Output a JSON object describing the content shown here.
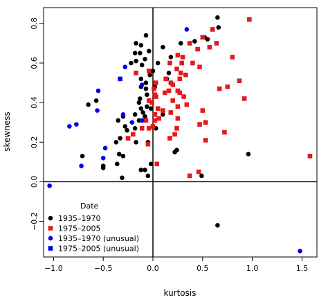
{
  "chart_data": {
    "type": "scatter",
    "title": "",
    "xlabel": "kurtosis",
    "ylabel": "skewness",
    "xlim": [
      -1.1,
      1.65
    ],
    "ylim": [
      -0.38,
      0.88
    ],
    "x_ticks": [
      -1.0,
      -0.5,
      0.0,
      0.5,
      1.0,
      1.5
    ],
    "x_tick_labels": [
      "−1.0",
      "−0.5",
      "0.0",
      "0.5",
      "1.0",
      "1.5"
    ],
    "y_ticks": [
      -0.2,
      0.0,
      0.2,
      0.4,
      0.6,
      0.8
    ],
    "y_tick_labels": [
      "−0.2",
      "0.0",
      "0.2",
      "0.4",
      "0.6",
      "0.8"
    ],
    "reference_lines": {
      "x": 0,
      "y": 0
    },
    "grid": false,
    "legend": {
      "title": "Date",
      "placement": "bottom-left",
      "entries": [
        "1935–1970",
        "1975–2005",
        "1935–1970 (unusual)",
        "1975–2005 (unusual)"
      ]
    },
    "series": [
      {
        "name": "1935–1970",
        "marker": "circle",
        "color": "#000000",
        "points": [
          [
            0.65,
            0.83
          ],
          [
            0.66,
            0.78
          ],
          [
            0.55,
            0.72
          ],
          [
            0.52,
            0.73
          ],
          [
            0.42,
            0.71
          ],
          [
            -0.07,
            0.74
          ],
          [
            -0.17,
            0.7
          ],
          [
            -0.12,
            0.69
          ],
          [
            -0.18,
            0.65
          ],
          [
            -0.13,
            0.65
          ],
          [
            0.1,
            0.68
          ],
          [
            -0.08,
            0.62
          ],
          [
            -0.04,
            0.66
          ],
          [
            0.18,
            0.63
          ],
          [
            0.28,
            0.7
          ],
          [
            -0.22,
            0.6
          ],
          [
            -0.17,
            0.61
          ],
          [
            -0.11,
            0.59
          ],
          [
            0.05,
            0.6
          ],
          [
            0.0,
            0.56
          ],
          [
            -0.03,
            0.54
          ],
          [
            -0.12,
            0.52
          ],
          [
            -0.07,
            0.5
          ],
          [
            0.16,
            0.55
          ],
          [
            0.14,
            0.52
          ],
          [
            -0.12,
            0.48
          ],
          [
            -0.07,
            0.47
          ],
          [
            0.02,
            0.48
          ],
          [
            -0.06,
            0.44
          ],
          [
            -0.04,
            0.41
          ],
          [
            -0.13,
            0.42
          ],
          [
            -0.14,
            0.4
          ],
          [
            -0.12,
            0.37
          ],
          [
            -0.06,
            0.38
          ],
          [
            -0.02,
            0.37
          ],
          [
            -0.1,
            0.35
          ],
          [
            -0.08,
            0.33
          ],
          [
            -0.18,
            0.34
          ],
          [
            -0.14,
            0.31
          ],
          [
            -0.3,
            0.33
          ],
          [
            -0.35,
            0.31
          ],
          [
            -0.28,
            0.28
          ],
          [
            -0.18,
            0.27
          ],
          [
            -0.26,
            0.26
          ],
          [
            -0.33,
            0.22
          ],
          [
            -0.37,
            0.2
          ],
          [
            -0.17,
            0.2
          ],
          [
            -0.05,
            0.2
          ],
          [
            -0.34,
            0.14
          ],
          [
            -0.3,
            0.13
          ],
          [
            -0.36,
            0.09
          ],
          [
            -0.12,
            0.06
          ],
          [
            -0.08,
            0.06
          ],
          [
            -0.02,
            0.09
          ],
          [
            -0.31,
            0.02
          ],
          [
            -0.05,
            0.03
          ],
          [
            -0.65,
            0.39
          ],
          [
            -0.57,
            0.41
          ],
          [
            -0.71,
            0.13
          ],
          [
            -0.5,
            0.08
          ],
          [
            -0.5,
            0.07
          ],
          [
            0.22,
            0.15
          ],
          [
            0.24,
            0.16
          ],
          [
            0.49,
            0.03
          ],
          [
            0.65,
            -0.22
          ],
          [
            0.96,
            0.14
          ],
          [
            0.03,
            0.27
          ],
          [
            0.1,
            0.34
          ]
        ]
      },
      {
        "name": "1975–2005",
        "marker": "square",
        "color": "#e41a1c",
        "points": [
          [
            0.97,
            0.82
          ],
          [
            0.6,
            0.77
          ],
          [
            0.5,
            0.73
          ],
          [
            0.57,
            0.68
          ],
          [
            0.45,
            0.67
          ],
          [
            0.64,
            0.7
          ],
          [
            0.37,
            0.7
          ],
          [
            0.25,
            0.64
          ],
          [
            0.3,
            0.63
          ],
          [
            0.8,
            0.63
          ],
          [
            0.4,
            0.6
          ],
          [
            0.47,
            0.58
          ],
          [
            0.17,
            0.6
          ],
          [
            0.29,
            0.6
          ],
          [
            0.24,
            0.57
          ],
          [
            -0.17,
            0.55
          ],
          [
            -0.04,
            0.56
          ],
          [
            0.28,
            0.55
          ],
          [
            0.33,
            0.54
          ],
          [
            0.18,
            0.5
          ],
          [
            0.13,
            0.52
          ],
          [
            0.27,
            0.52
          ],
          [
            0.2,
            0.49
          ],
          [
            0.87,
            0.51
          ],
          [
            0.75,
            0.48
          ],
          [
            0.67,
            0.47
          ],
          [
            0.03,
            0.5
          ],
          [
            0.01,
            0.47
          ],
          [
            0.16,
            0.46
          ],
          [
            0.12,
            0.45
          ],
          [
            0.25,
            0.46
          ],
          [
            0.27,
            0.45
          ],
          [
            0.31,
            0.43
          ],
          [
            0.02,
            0.44
          ],
          [
            -0.04,
            0.41
          ],
          [
            -0.01,
            0.4
          ],
          [
            0.03,
            0.43
          ],
          [
            0.2,
            0.41
          ],
          [
            0.92,
            0.42
          ],
          [
            0.05,
            0.37
          ],
          [
            0.25,
            0.38
          ],
          [
            0.34,
            0.39
          ],
          [
            0.1,
            0.36
          ],
          [
            0.18,
            0.35
          ],
          [
            0.02,
            0.34
          ],
          [
            0.06,
            0.32
          ],
          [
            0.02,
            0.31
          ],
          [
            -0.07,
            0.31
          ],
          [
            0.5,
            0.36
          ],
          [
            0.53,
            0.3
          ],
          [
            0.25,
            0.32
          ],
          [
            -0.11,
            0.27
          ],
          [
            -0.04,
            0.27
          ],
          [
            0.0,
            0.28
          ],
          [
            -0.2,
            0.24
          ],
          [
            -0.25,
            0.22
          ],
          [
            0.17,
            0.22
          ],
          [
            0.24,
            0.27
          ],
          [
            0.22,
            0.24
          ],
          [
            0.53,
            0.21
          ],
          [
            0.72,
            0.25
          ],
          [
            0.47,
            0.29
          ],
          [
            -0.05,
            0.19
          ],
          [
            0.04,
            0.09
          ],
          [
            0.37,
            0.03
          ],
          [
            0.46,
            0.05
          ],
          [
            1.58,
            0.13
          ]
        ]
      },
      {
        "name": "1935–1970 (unusual)",
        "marker": "circle",
        "color": "#0000ee",
        "points": [
          [
            -0.28,
            0.58
          ],
          [
            -0.55,
            0.46
          ],
          [
            -0.84,
            0.28
          ],
          [
            -0.77,
            0.29
          ],
          [
            -0.56,
            0.36
          ],
          [
            -0.3,
            0.34
          ],
          [
            -0.21,
            0.3
          ],
          [
            -0.11,
            0.31
          ],
          [
            -0.48,
            0.17
          ],
          [
            -0.5,
            0.12
          ],
          [
            -0.72,
            0.08
          ],
          [
            -1.04,
            -0.02
          ],
          [
            1.48,
            -0.35
          ],
          [
            0.34,
            0.77
          ],
          [
            -0.11,
            0.49
          ]
        ]
      },
      {
        "name": "1975–2005 (unusual)",
        "marker": "square",
        "color": "#0000ee",
        "points": [
          [
            -0.33,
            0.52
          ]
        ]
      }
    ]
  }
}
